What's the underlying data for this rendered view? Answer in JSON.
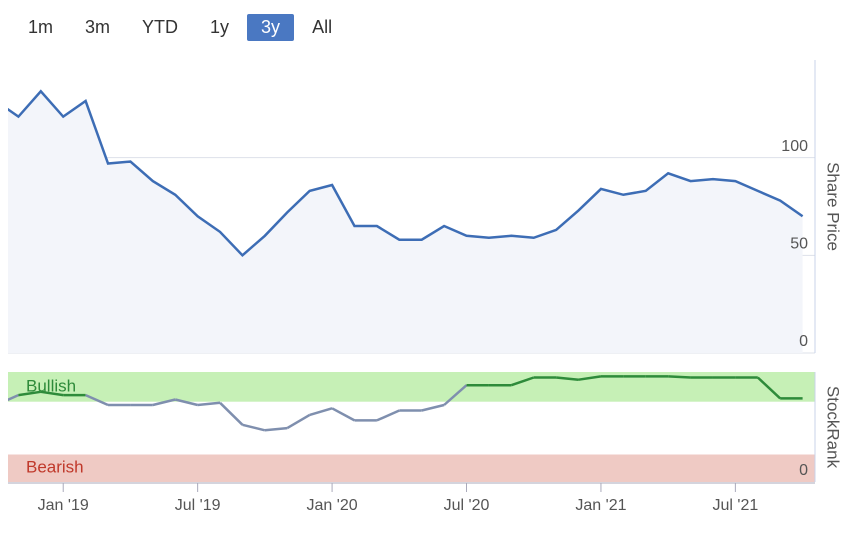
{
  "range_buttons": {
    "labels": [
      "1m",
      "3m",
      "YTD",
      "1y",
      "3y",
      "All"
    ],
    "active": 4
  },
  "chart_data": [
    {
      "type": "line",
      "y_label": "Share Price",
      "x": [
        "2018-10",
        "2018-11",
        "2018-12",
        "2019-01",
        "2019-02",
        "2019-03",
        "2019-04",
        "2019-05",
        "2019-06",
        "2019-07",
        "2019-08",
        "2019-09",
        "2019-10",
        "2019-11",
        "2019-12",
        "2020-01",
        "2020-02",
        "2020-03",
        "2020-04",
        "2020-05",
        "2020-06",
        "2020-07",
        "2020-08",
        "2020-09",
        "2020-10",
        "2020-11",
        "2020-12",
        "2021-01",
        "2021-02",
        "2021-03",
        "2021-04",
        "2021-05",
        "2021-06",
        "2021-07",
        "2021-08",
        "2021-09",
        "2021-10"
      ],
      "series": [
        {
          "name": "Share Price",
          "color": "#3d6db5",
          "values": [
            129,
            121,
            134,
            121,
            129,
            97,
            98,
            88,
            81,
            70,
            62,
            50,
            60,
            72,
            83,
            86,
            65,
            65,
            58,
            58,
            65,
            60,
            59,
            60,
            59,
            63,
            73,
            84,
            81,
            83,
            92,
            88,
            89,
            88,
            83,
            78,
            70
          ]
        }
      ],
      "xlim": [
        "2018-10",
        "2021-11"
      ],
      "ylim": [
        0,
        150
      ],
      "yticks": [
        0,
        50,
        100
      ],
      "grid": true
    },
    {
      "type": "line",
      "y_label": "StockRank",
      "x": [
        "2018-10",
        "2018-11",
        "2018-12",
        "2019-01",
        "2019-02",
        "2019-03",
        "2019-04",
        "2019-05",
        "2019-06",
        "2019-07",
        "2019-08",
        "2019-09",
        "2019-10",
        "2019-11",
        "2019-12",
        "2020-01",
        "2020-02",
        "2020-03",
        "2020-04",
        "2020-05",
        "2020-06",
        "2020-07",
        "2020-08",
        "2020-09",
        "2020-10",
        "2020-11",
        "2020-12",
        "2021-01",
        "2021-02",
        "2021-03",
        "2021-04",
        "2021-05",
        "2021-06",
        "2021-07",
        "2021-08",
        "2021-09",
        "2021-10"
      ],
      "series": [
        {
          "name": "StockRank",
          "color": "#7f8fae",
          "bullish_color": "#2e8b3a",
          "values": [
            70,
            79,
            82,
            79,
            79,
            70,
            70,
            70,
            75,
            70,
            72,
            52,
            47,
            49,
            61,
            67,
            56,
            56,
            65,
            65,
            70,
            88,
            88,
            88,
            95,
            95,
            93,
            96,
            96,
            96,
            96,
            95,
            95,
            95,
            95,
            76,
            76
          ]
        }
      ],
      "bands": [
        {
          "label": "Bullish",
          "from": 73,
          "to": 100,
          "color": "#c6f0b6",
          "text_color": "#2e8b3a"
        },
        {
          "label": "Bearish",
          "from": 0,
          "to": 25,
          "color": "#efcac4",
          "text_color": "#c0392b"
        }
      ],
      "xlim": [
        "2018-10",
        "2021-11"
      ],
      "ylim": [
        0,
        100
      ],
      "yticks": [
        0
      ],
      "xticks": [
        {
          "value": "2019-01",
          "label": "Jan '19"
        },
        {
          "value": "2019-07",
          "label": "Jul '19"
        },
        {
          "value": "2020-01",
          "label": "Jan '20"
        },
        {
          "value": "2020-07",
          "label": "Jul '20"
        },
        {
          "value": "2021-01",
          "label": "Jan '21"
        },
        {
          "value": "2021-07",
          "label": "Jul '21"
        }
      ]
    }
  ]
}
